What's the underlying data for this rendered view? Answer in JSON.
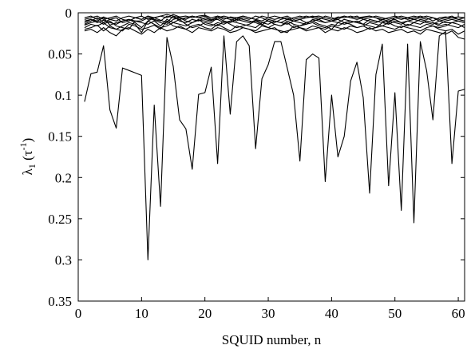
{
  "chart_data": {
    "type": "line",
    "xlabel": "SQUID number, n",
    "ylabel": "λ",
    "ylabel_subscript": "1",
    "ylabel_units": " (τ",
    "ylabel_units_sup": "-1",
    "ylabel_units_close": ")",
    "xlim": [
      0,
      61
    ],
    "ylim": [
      0,
      0.35
    ],
    "y_reversed": true,
    "xticks": [
      0,
      10,
      20,
      30,
      40,
      50,
      60
    ],
    "yticks": [
      0,
      0.05,
      0.1,
      0.15,
      0.2,
      0.25,
      0.3,
      0.35
    ],
    "ytick_labels": [
      "0",
      "0.05",
      "0.1",
      "0.15",
      "0.2",
      "0.25",
      "0.3",
      "0.35"
    ],
    "grid": false,
    "x": [
      1,
      2,
      3,
      4,
      5,
      6,
      7,
      8,
      9,
      10,
      11,
      12,
      13,
      14,
      15,
      16,
      17,
      18,
      19,
      20,
      21,
      22,
      23,
      24,
      25,
      26,
      27,
      28,
      29,
      30,
      31,
      32,
      33,
      34,
      35,
      36,
      37,
      38,
      39,
      40,
      41,
      42,
      43,
      44,
      45,
      46,
      47,
      48,
      49,
      50,
      51,
      52,
      53,
      54,
      55,
      56,
      57,
      58,
      59,
      60,
      61
    ],
    "series": [
      {
        "values": [
          0.108,
          0.074,
          0.072,
          0.04,
          0.118,
          0.14,
          0.067,
          0.07,
          0.073,
          0.076,
          0.3,
          0.112,
          0.235,
          0.03,
          0.065,
          0.13,
          0.141,
          0.19,
          0.099,
          0.097,
          0.066,
          0.183,
          0.028,
          0.123,
          0.035,
          0.028,
          0.04,
          0.165,
          0.08,
          0.063,
          0.035,
          0.035,
          0.067,
          0.1,
          0.18,
          0.057,
          0.05,
          0.055,
          0.205,
          0.1,
          0.175,
          0.15,
          0.083,
          0.06,
          0.103,
          0.219,
          0.075,
          0.038,
          0.21,
          0.097,
          0.24,
          0.038,
          0.255,
          0.035,
          0.07,
          0.13,
          0.028,
          0.023,
          0.183,
          0.095,
          0.093
        ]
      },
      {
        "values": [
          0.012,
          0.008,
          0.01,
          0.006,
          0.015,
          0.012,
          0.01,
          0.008,
          0.012,
          0.018,
          0.01,
          0.006,
          0.009,
          0.012,
          0.004,
          0.01,
          0.012,
          0.008,
          0.01,
          0.006,
          0.009,
          0.008,
          0.012,
          0.01,
          0.006,
          0.008,
          0.01,
          0.012,
          0.015,
          0.008,
          0.01,
          0.012,
          0.014,
          0.01,
          0.008,
          0.012,
          0.01,
          0.008,
          0.012,
          0.01,
          0.008,
          0.012,
          0.01,
          0.012,
          0.008,
          0.01,
          0.012,
          0.008,
          0.01,
          0.012,
          0.014,
          0.01,
          0.008,
          0.01,
          0.012,
          0.014,
          0.01,
          0.012,
          0.012,
          0.01,
          0.012
        ]
      },
      {
        "values": [
          0.018,
          0.014,
          0.016,
          0.012,
          0.018,
          0.02,
          0.016,
          0.012,
          0.014,
          0.024,
          0.01,
          0.014,
          0.018,
          0.016,
          0.012,
          0.008,
          0.014,
          0.018,
          0.016,
          0.012,
          0.014,
          0.016,
          0.01,
          0.014,
          0.018,
          0.016,
          0.014,
          0.01,
          0.014,
          0.018,
          0.014,
          0.016,
          0.012,
          0.018,
          0.016,
          0.014,
          0.012,
          0.016,
          0.018,
          0.014,
          0.016,
          0.012,
          0.014,
          0.018,
          0.016,
          0.012,
          0.014,
          0.016,
          0.012,
          0.016,
          0.018,
          0.014,
          0.016,
          0.018,
          0.014,
          0.016,
          0.018,
          0.016,
          0.012,
          0.014,
          0.018
        ]
      },
      {
        "values": [
          0.006,
          0.004,
          0.008,
          0.005,
          0.008,
          0.01,
          0.006,
          0.004,
          0.006,
          0.008,
          0.004,
          0.006,
          0.004,
          0.006,
          0.002,
          0.005,
          0.004,
          0.006,
          0.004,
          0.003,
          0.006,
          0.004,
          0.008,
          0.005,
          0.006,
          0.004,
          0.006,
          0.008,
          0.01,
          0.006,
          0.004,
          0.006,
          0.008,
          0.006,
          0.004,
          0.006,
          0.005,
          0.004,
          0.006,
          0.008,
          0.005,
          0.006,
          0.004,
          0.006,
          0.005,
          0.004,
          0.006,
          0.008,
          0.006,
          0.004,
          0.006,
          0.008,
          0.006,
          0.004,
          0.006,
          0.01,
          0.006,
          0.005,
          0.006,
          0.005,
          0.006
        ]
      },
      {
        "values": [
          0.015,
          0.012,
          0.01,
          0.014,
          0.01,
          0.016,
          0.018,
          0.02,
          0.01,
          0.012,
          0.014,
          0.01,
          0.016,
          0.008,
          0.012,
          0.014,
          0.016,
          0.012,
          0.008,
          0.014,
          0.016,
          0.012,
          0.014,
          0.01,
          0.012,
          0.014,
          0.016,
          0.018,
          0.012,
          0.01,
          0.014,
          0.016,
          0.01,
          0.014,
          0.016,
          0.012,
          0.01,
          0.014,
          0.016,
          0.02,
          0.012,
          0.014,
          0.012,
          0.01,
          0.014,
          0.016,
          0.018,
          0.012,
          0.014,
          0.01,
          0.012,
          0.016,
          0.012,
          0.014,
          0.01,
          0.012,
          0.016,
          0.014,
          0.016,
          0.018,
          0.014
        ]
      },
      {
        "values": [
          0.01,
          0.008,
          0.012,
          0.009,
          0.012,
          0.014,
          0.01,
          0.008,
          0.01,
          0.01,
          0.006,
          0.009,
          0.012,
          0.014,
          0.008,
          0.006,
          0.01,
          0.012,
          0.009,
          0.01,
          0.012,
          0.006,
          0.01,
          0.012,
          0.008,
          0.01,
          0.012,
          0.009,
          0.012,
          0.014,
          0.01,
          0.012,
          0.008,
          0.01,
          0.012,
          0.014,
          0.008,
          0.01,
          0.012,
          0.01,
          0.012,
          0.008,
          0.01,
          0.012,
          0.014,
          0.008,
          0.01,
          0.012,
          0.01,
          0.008,
          0.012,
          0.01,
          0.012,
          0.008,
          0.01,
          0.012,
          0.014,
          0.01,
          0.008,
          0.01,
          0.012
        ]
      },
      {
        "values": [
          0.02,
          0.018,
          0.015,
          0.022,
          0.016,
          0.02,
          0.022,
          0.014,
          0.016,
          0.02,
          0.018,
          0.015,
          0.02,
          0.01,
          0.016,
          0.018,
          0.02,
          0.016,
          0.014,
          0.018,
          0.02,
          0.014,
          0.018,
          0.022,
          0.016,
          0.018,
          0.02,
          0.022,
          0.016,
          0.018,
          0.02,
          0.022,
          0.024,
          0.016,
          0.018,
          0.02,
          0.016,
          0.018,
          0.02,
          0.016,
          0.018,
          0.02,
          0.016,
          0.018,
          0.016,
          0.02,
          0.018,
          0.016,
          0.018,
          0.02,
          0.016,
          0.018,
          0.02,
          0.022,
          0.018,
          0.016,
          0.02,
          0.022,
          0.02,
          0.026,
          0.022
        ]
      },
      {
        "values": [
          0.014,
          0.01,
          0.006,
          0.012,
          0.008,
          0.006,
          0.012,
          0.01,
          0.006,
          0.008,
          0.004,
          0.008,
          0.01,
          0.004,
          0.006,
          0.008,
          0.006,
          0.004,
          0.006,
          0.008,
          0.01,
          0.004,
          0.006,
          0.008,
          0.01,
          0.006,
          0.008,
          0.004,
          0.006,
          0.01,
          0.012,
          0.008,
          0.006,
          0.01,
          0.008,
          0.006,
          0.004,
          0.006,
          0.008,
          0.01,
          0.006,
          0.004,
          0.006,
          0.008,
          0.006,
          0.004,
          0.006,
          0.01,
          0.012,
          0.006,
          0.008,
          0.006,
          0.004,
          0.006,
          0.008,
          0.006,
          0.01,
          0.008,
          0.006,
          0.008,
          0.01
        ]
      },
      {
        "values": [
          0.022,
          0.02,
          0.024,
          0.018,
          0.024,
          0.028,
          0.02,
          0.018,
          0.022,
          0.026,
          0.02,
          0.024,
          0.018,
          0.022,
          0.02,
          0.016,
          0.02,
          0.024,
          0.018,
          0.02,
          0.022,
          0.018,
          0.02,
          0.024,
          0.022,
          0.018,
          0.02,
          0.024,
          0.022,
          0.02,
          0.018,
          0.024,
          0.022,
          0.02,
          0.018,
          0.022,
          0.02,
          0.018,
          0.024,
          0.02,
          0.022,
          0.018,
          0.02,
          0.024,
          0.022,
          0.018,
          0.022,
          0.02,
          0.024,
          0.022,
          0.02,
          0.024,
          0.022,
          0.026,
          0.02,
          0.022,
          0.024,
          0.026,
          0.022,
          0.03,
          0.032
        ]
      },
      {
        "values": [
          0.008,
          0.006,
          0.004,
          0.008,
          0.006,
          0.004,
          0.008,
          0.01,
          0.006,
          0.004,
          0.008,
          0.006,
          0.004,
          0.002,
          0.004,
          0.006,
          0.008,
          0.004,
          0.006,
          0.004,
          0.008,
          0.006,
          0.004,
          0.006,
          0.008,
          0.004,
          0.006,
          0.008,
          0.004,
          0.006,
          0.008,
          0.006,
          0.004,
          0.008,
          0.006,
          0.004,
          0.006,
          0.008,
          0.004,
          0.006,
          0.008,
          0.004,
          0.006,
          0.004,
          0.008,
          0.006,
          0.004,
          0.006,
          0.008,
          0.006,
          0.004,
          0.006,
          0.008,
          0.006,
          0.004,
          0.006,
          0.008,
          0.006,
          0.004,
          0.008,
          0.006
        ]
      }
    ]
  }
}
